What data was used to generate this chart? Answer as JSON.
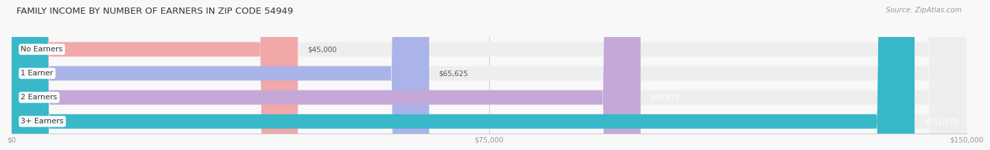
{
  "title": "FAMILY INCOME BY NUMBER OF EARNERS IN ZIP CODE 54949",
  "source": "Source: ZipAtlas.com",
  "categories": [
    "No Earners",
    "1 Earner",
    "2 Earners",
    "3+ Earners"
  ],
  "values": [
    45000,
    65625,
    98833,
    141875
  ],
  "labels": [
    "$45,000",
    "$65,625",
    "$98,833",
    "$141,875"
  ],
  "bar_colors": [
    "#f2a8a8",
    "#aab4e8",
    "#c4a8d8",
    "#38b8c8"
  ],
  "label_colors": [
    "#555555",
    "#555555",
    "#ffffff",
    "#ffffff"
  ],
  "bar_bg_color": "#eeeeee",
  "xlim": [
    0,
    150000
  ],
  "xticks": [
    0,
    75000,
    150000
  ],
  "xtick_labels": [
    "$0",
    "$75,000",
    "$150,000"
  ],
  "title_fontsize": 9.5,
  "source_fontsize": 7.5,
  "value_label_fontsize": 7.5,
  "cat_fontsize": 8,
  "bg_color": "#f8f8f8"
}
